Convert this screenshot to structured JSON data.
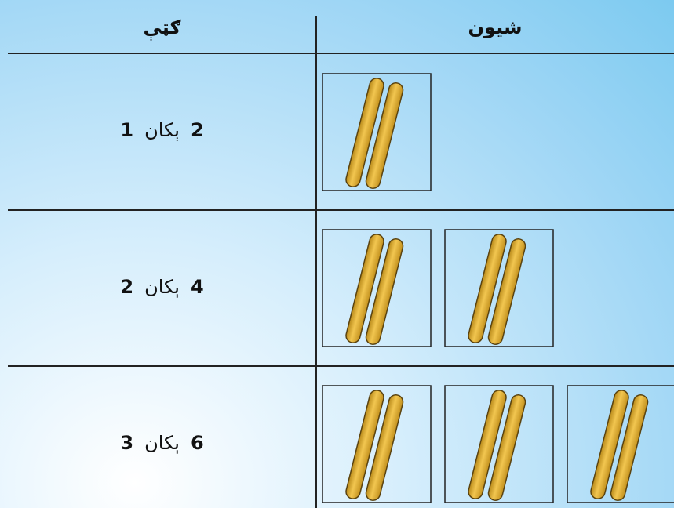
{
  "header": {
    "left": "ګټې",
    "right": "شیون"
  },
  "rows": [
    {
      "left_number": "1",
      "word": "ېکان",
      "right_number": "2"
    },
    {
      "left_number": "2",
      "word": "ېکان",
      "right_number": "4"
    },
    {
      "left_number": "3",
      "word": "ېکان",
      "right_number": "6"
    }
  ]
}
